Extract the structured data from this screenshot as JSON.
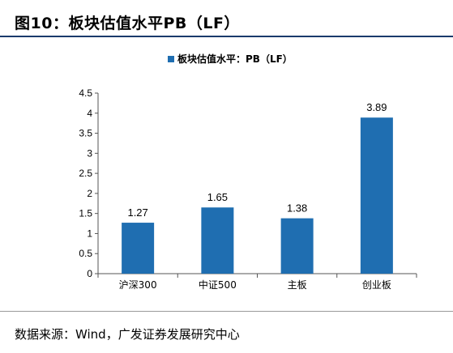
{
  "figure": {
    "title": "图10：板块估值水平PB（LF）",
    "source": "数据来源：Wind，广发证券发展研究中心"
  },
  "colors": {
    "bar": "#1f6eb1",
    "rule": "#1a3a6b"
  },
  "chart_data": {
    "type": "bar",
    "categories": [
      "沪深300",
      "中证500",
      "主板",
      "创业板"
    ],
    "series": [
      {
        "name": "板块估值水平：PB（LF）",
        "values": [
          1.27,
          1.65,
          1.38,
          3.89
        ]
      }
    ],
    "data_labels": [
      "1.27",
      "1.65",
      "1.38",
      "3.89"
    ],
    "ylim": [
      0,
      4.5
    ],
    "yticks": [
      0,
      0.5,
      1,
      1.5,
      2,
      2.5,
      3,
      3.5,
      4,
      4.5
    ],
    "ytick_labels": [
      "0",
      "0.5",
      "1",
      "1.5",
      "2",
      "2.5",
      "3",
      "3.5",
      "4",
      "4.5"
    ],
    "grid": false,
    "legend": "top-center"
  }
}
